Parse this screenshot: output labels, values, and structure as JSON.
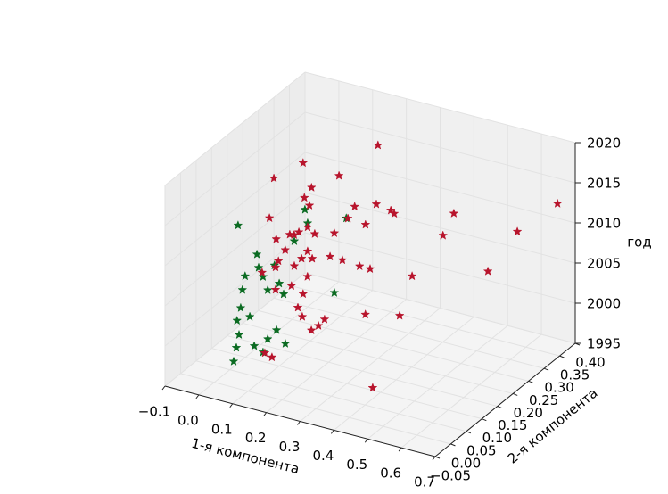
{
  "chart_data": {
    "type": "scatter3d",
    "xlabel": "1-я компонента",
    "ylabel": "2-я компонента",
    "zlabel": "год",
    "xlim": [
      -0.1,
      0.7
    ],
    "ylim": [
      -0.05,
      0.4
    ],
    "zlim": [
      1995,
      2020
    ],
    "xticks": [
      {
        "value": -0.1,
        "label": "−0.1"
      },
      {
        "value": 0,
        "label": "0.0"
      },
      0.1,
      0.2,
      0.3,
      0.4,
      0.5,
      0.6,
      0.7
    ],
    "yticks": [
      {
        "value": -0.05,
        "label": "−0.05"
      },
      {
        "value": 0,
        "label": "0.00"
      },
      0.05,
      {
        "value": 0.1,
        "label": "0.10"
      },
      0.15,
      {
        "value": 0.2,
        "label": "0.20"
      },
      0.25,
      {
        "value": 0.3,
        "label": "0.30"
      },
      0.35,
      {
        "value": 0.4,
        "label": "0.40"
      }
    ],
    "zticks": [
      1995,
      2000,
      2005,
      2010,
      2015,
      2020
    ],
    "grid": true,
    "marker": "star",
    "series": [
      {
        "color": "#0b6b22",
        "x": [
          0.054,
          0.041,
          0.049,
          0.057,
          0.051,
          0.062,
          0.067,
          0.075,
          0.11,
          0.128,
          0.142,
          0.142,
          0.128,
          0.102,
          0.168,
          0.194,
          0.189,
          0.117,
          0.107,
          0.188,
          0.194,
          0.089,
          0.162,
          0.115,
          0.176,
          0.115
        ],
        "y": [
          0.0175,
          0.0175,
          0.0175,
          0.0175,
          0.0175,
          0.0175,
          0.0175,
          0.0175,
          0.0175,
          0.0175,
          0.0175,
          0.0175,
          0.0175,
          0.0175,
          0.0175,
          0.0175,
          0.0175,
          0.13,
          0.175,
          0.22,
          0.175,
          0.0175,
          0.0175,
          0.0175,
          0.0175,
          0.175
        ],
        "z": [
          2014.6,
          1997.5,
          1999.3,
          2001,
          2002.7,
          2004.4,
          2006.7,
          2008.5,
          2011.6,
          2009,
          2007.5,
          2001.4,
          1999.6,
          2000.1,
          2002.8,
          2001.4,
          2007.5,
          2009.8,
          2012.2,
          2010.6,
          2002.8,
          2003.6,
          2010.8,
          2010,
          2008.7,
          2010.6
        ]
      },
      {
        "color": "#b8142c",
        "x": [
          0.199,
          0.06,
          0.015,
          0.085,
          0.064,
          0.079,
          0.125,
          0.002,
          0.075,
          0.062,
          0.089,
          0.115,
          0.136,
          0.022,
          0.111,
          0.13,
          0.11,
          0.162,
          0.194,
          0.237,
          0.247,
          0.382,
          0.35,
          0.57,
          0.689,
          0.483,
          0.3,
          0.217,
          0.186,
          0.135,
          0.14,
          0.115,
          0.097,
          0.117,
          0.09,
          0.07,
          0.103,
          0.063,
          0.103,
          0.15,
          0.169,
          0.182,
          0.209,
          0.23,
          0.248,
          0.286,
          0.346,
          0.432,
          0.175,
          0.154,
          0.17,
          0.156,
          0.143
        ],
        "y": [
          0.31,
          0.22,
          0.175,
          0.22,
          0.22,
          0.22,
          0.265,
          0.175,
          0.175,
          0.175,
          0.175,
          0.175,
          0.175,
          0.175,
          0.265,
          0.31,
          0.31,
          0.31,
          0.31,
          0.31,
          0.31,
          0.355,
          0.355,
          0.355,
          0.355,
          0.355,
          0.31,
          0.265,
          0.265,
          0.265,
          0.22,
          0.175,
          0.175,
          0.13,
          0.13,
          0.13,
          0.085,
          0.085,
          0.085,
          0.085,
          0.085,
          0.085,
          0.085,
          0.085,
          0.085,
          0.175,
          0.22,
          0.04,
          -0.005,
          -0.005,
          0.13,
          0.13,
          0.13
        ],
        "z": [
          2017,
          2016.1,
          2015.1,
          2013.3,
          2011.8,
          2011,
          2013.8,
          2010,
          2008.7,
          2008.6,
          2009.2,
          2010.1,
          2009.5,
          2007.6,
          2006.5,
          2008.6,
          2006.9,
          2006.7,
          2009.6,
          2009.3,
          2009,
          2009.1,
          2006,
          2008.9,
          2013.7,
          2003,
          2001.8,
          2003.2,
          2003.2,
          2003.4,
          2005.3,
          2007.1,
          2006,
          2006.7,
          2008.4,
          2006.8,
          2007.8,
          2006.7,
          2005,
          2006,
          2003.5,
          2002.5,
          2001.1,
          2001.9,
          2002.9,
          2001.1,
          2000.2,
          1997.8,
          2000.2,
          2000.5,
          2008.2,
          2005.8,
          2003.5
        ]
      }
    ]
  }
}
